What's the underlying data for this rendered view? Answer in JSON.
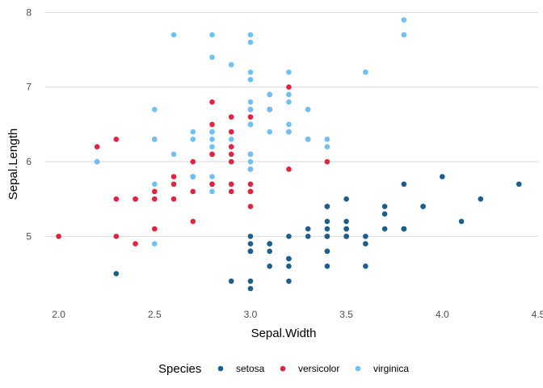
{
  "chart_data": {
    "type": "scatter",
    "title": "",
    "xlabel": "Sepal.Width",
    "ylabel": "Sepal.Length",
    "xlim": [
      1.93,
      4.5
    ],
    "ylim": [
      4.17,
      8.08
    ],
    "xticks": [
      2.0,
      2.5,
      3.0,
      3.5,
      4.0,
      4.5
    ],
    "xtick_labels": [
      "2.0",
      "2.5",
      "3.0",
      "3.5",
      "4.0",
      "4.5"
    ],
    "yticks": [
      5,
      6,
      7,
      8
    ],
    "ytick_labels": [
      "5",
      "6",
      "7",
      "8"
    ],
    "grid": "horizontal major",
    "legend": {
      "title": "Species",
      "position": "bottom"
    },
    "series": [
      {
        "name": "setosa",
        "color": "#1b5f8c",
        "points": [
          [
            3.5,
            5.1
          ],
          [
            3.0,
            4.9
          ],
          [
            3.2,
            4.7
          ],
          [
            3.1,
            4.6
          ],
          [
            3.6,
            5.0
          ],
          [
            3.9,
            5.4
          ],
          [
            3.4,
            4.6
          ],
          [
            3.4,
            5.0
          ],
          [
            2.9,
            4.4
          ],
          [
            3.1,
            4.9
          ],
          [
            3.7,
            5.4
          ],
          [
            3.4,
            4.8
          ],
          [
            3.0,
            4.8
          ],
          [
            3.0,
            4.3
          ],
          [
            4.0,
            5.8
          ],
          [
            4.4,
            5.7
          ],
          [
            3.9,
            5.4
          ],
          [
            3.5,
            5.1
          ],
          [
            3.8,
            5.7
          ],
          [
            3.8,
            5.1
          ],
          [
            3.4,
            5.4
          ],
          [
            3.7,
            5.1
          ],
          [
            3.6,
            4.6
          ],
          [
            3.3,
            5.1
          ],
          [
            3.4,
            4.8
          ],
          [
            3.0,
            5.0
          ],
          [
            3.4,
            5.0
          ],
          [
            3.5,
            5.2
          ],
          [
            3.4,
            5.2
          ],
          [
            3.2,
            4.7
          ],
          [
            3.1,
            4.8
          ],
          [
            3.4,
            5.4
          ],
          [
            4.1,
            5.2
          ],
          [
            4.2,
            5.5
          ],
          [
            3.1,
            4.9
          ],
          [
            3.2,
            5.0
          ],
          [
            3.5,
            5.5
          ],
          [
            3.6,
            4.9
          ],
          [
            3.0,
            4.4
          ],
          [
            3.4,
            5.1
          ],
          [
            3.5,
            5.0
          ],
          [
            2.3,
            4.5
          ],
          [
            3.2,
            4.4
          ],
          [
            3.5,
            5.0
          ],
          [
            3.8,
            5.1
          ],
          [
            3.0,
            4.8
          ],
          [
            3.8,
            5.1
          ],
          [
            3.2,
            4.6
          ],
          [
            3.7,
            5.3
          ],
          [
            3.3,
            5.0
          ]
        ]
      },
      {
        "name": "versicolor",
        "color": "#e0243f",
        "points": [
          [
            3.2,
            7.0
          ],
          [
            3.2,
            6.4
          ],
          [
            3.1,
            6.9
          ],
          [
            2.3,
            5.5
          ],
          [
            2.8,
            6.5
          ],
          [
            2.8,
            5.7
          ],
          [
            3.3,
            6.3
          ],
          [
            2.4,
            4.9
          ],
          [
            2.9,
            6.6
          ],
          [
            2.7,
            5.2
          ],
          [
            2.0,
            5.0
          ],
          [
            3.0,
            5.9
          ],
          [
            2.2,
            6.0
          ],
          [
            2.9,
            6.1
          ],
          [
            2.9,
            5.6
          ],
          [
            3.1,
            6.7
          ],
          [
            3.0,
            5.6
          ],
          [
            2.7,
            5.8
          ],
          [
            2.2,
            6.2
          ],
          [
            2.5,
            5.6
          ],
          [
            3.2,
            5.9
          ],
          [
            2.8,
            6.1
          ],
          [
            2.5,
            6.3
          ],
          [
            2.8,
            6.1
          ],
          [
            2.9,
            6.4
          ],
          [
            3.0,
            6.6
          ],
          [
            2.8,
            6.8
          ],
          [
            3.0,
            6.7
          ],
          [
            2.9,
            6.0
          ],
          [
            2.6,
            5.7
          ],
          [
            2.4,
            5.5
          ],
          [
            2.4,
            5.5
          ],
          [
            2.7,
            5.8
          ],
          [
            2.7,
            6.0
          ],
          [
            3.0,
            5.4
          ],
          [
            3.4,
            6.0
          ],
          [
            3.1,
            6.7
          ],
          [
            2.3,
            6.3
          ],
          [
            3.0,
            5.6
          ],
          [
            2.5,
            5.5
          ],
          [
            2.6,
            5.5
          ],
          [
            3.0,
            6.1
          ],
          [
            2.6,
            5.8
          ],
          [
            2.3,
            5.0
          ],
          [
            2.7,
            5.6
          ],
          [
            3.0,
            5.7
          ],
          [
            2.9,
            5.7
          ],
          [
            2.9,
            6.2
          ],
          [
            2.5,
            5.1
          ],
          [
            2.8,
            5.7
          ]
        ]
      },
      {
        "name": "virginica",
        "color": "#6ec1f2",
        "points": [
          [
            3.3,
            6.3
          ],
          [
            2.7,
            5.8
          ],
          [
            3.0,
            7.1
          ],
          [
            2.9,
            6.3
          ],
          [
            3.0,
            6.5
          ],
          [
            3.0,
            7.6
          ],
          [
            2.5,
            4.9
          ],
          [
            2.9,
            7.3
          ],
          [
            2.5,
            6.7
          ],
          [
            3.6,
            7.2
          ],
          [
            3.2,
            6.5
          ],
          [
            2.7,
            6.4
          ],
          [
            3.0,
            6.8
          ],
          [
            2.5,
            5.7
          ],
          [
            2.8,
            5.8
          ],
          [
            3.2,
            6.4
          ],
          [
            3.0,
            6.5
          ],
          [
            3.8,
            7.7
          ],
          [
            2.6,
            7.7
          ],
          [
            2.2,
            6.0
          ],
          [
            3.2,
            6.9
          ],
          [
            2.8,
            5.6
          ],
          [
            2.8,
            7.7
          ],
          [
            2.7,
            6.3
          ],
          [
            3.3,
            6.7
          ],
          [
            3.2,
            7.2
          ],
          [
            2.8,
            6.2
          ],
          [
            3.0,
            6.1
          ],
          [
            2.8,
            6.4
          ],
          [
            3.0,
            7.2
          ],
          [
            2.8,
            7.4
          ],
          [
            3.8,
            7.9
          ],
          [
            2.8,
            6.4
          ],
          [
            2.8,
            6.3
          ],
          [
            2.6,
            6.1
          ],
          [
            3.0,
            7.7
          ],
          [
            3.4,
            6.3
          ],
          [
            3.1,
            6.4
          ],
          [
            3.0,
            6.0
          ],
          [
            3.1,
            6.9
          ],
          [
            3.1,
            6.7
          ],
          [
            3.1,
            6.9
          ],
          [
            2.7,
            5.8
          ],
          [
            3.2,
            6.8
          ],
          [
            3.3,
            6.7
          ],
          [
            3.0,
            6.7
          ],
          [
            2.5,
            6.3
          ],
          [
            3.0,
            6.5
          ],
          [
            3.4,
            6.2
          ],
          [
            3.0,
            5.9
          ]
        ]
      }
    ]
  }
}
